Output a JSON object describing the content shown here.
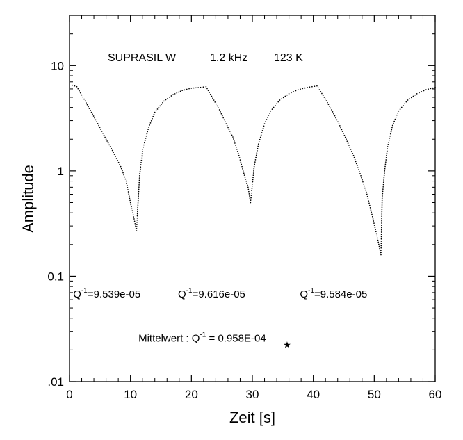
{
  "chart_data": {
    "type": "scatter",
    "title": "",
    "header": {
      "material": "SUPRASIL W",
      "frequency": "1.2 kHz",
      "temperature": "123 K"
    },
    "xlabel": "Zeit [s]",
    "ylabel": "Amplitude",
    "xlim": [
      0,
      60
    ],
    "ylim": [
      0.01,
      30
    ],
    "yscale": "log",
    "grid": false,
    "legend": "none",
    "x_ticks": [
      0,
      10,
      20,
      30,
      40,
      50,
      60
    ],
    "x_tick_labels": [
      "0",
      "10",
      "20",
      "30",
      "40",
      "50",
      "60"
    ],
    "y_ticks": [
      0.01,
      0.1,
      1,
      10
    ],
    "y_tick_labels": [
      ".01",
      "0.1",
      "1",
      "10"
    ],
    "series": [
      {
        "marker": "dot",
        "color": "#000000",
        "x": [
          0.5,
          1.2,
          2.4,
          3.6,
          4.8,
          6.0,
          7.2,
          8.4,
          9.3,
          10.0,
          10.6,
          11.0,
          11.2,
          11.5,
          12.0,
          13.0,
          14.0,
          15.5,
          17.0,
          18.5,
          20.0,
          21.5,
          22.4,
          23.5,
          24.6,
          25.7,
          26.8,
          27.8,
          28.6,
          29.3,
          29.7,
          29.9,
          30.3,
          31.0,
          32.0,
          33.0,
          34.5,
          36.0,
          37.5,
          39.0,
          40.6,
          41.8,
          43.0,
          44.2,
          45.4,
          46.6,
          47.8,
          48.8,
          49.8,
          50.6,
          51.1,
          51.3,
          51.7,
          52.2,
          53.0,
          54.0,
          55.5,
          57.0,
          58.5,
          60.0
        ],
        "y": [
          6.5,
          6.3,
          4.8,
          3.6,
          2.7,
          2.0,
          1.5,
          1.1,
          0.8,
          0.5,
          0.35,
          0.27,
          0.45,
          0.9,
          1.6,
          2.6,
          3.6,
          4.6,
          5.3,
          5.8,
          6.1,
          6.2,
          6.3,
          4.9,
          3.8,
          2.8,
          2.1,
          1.4,
          0.95,
          0.7,
          0.5,
          0.65,
          1.1,
          1.8,
          2.8,
          3.7,
          4.7,
          5.4,
          5.9,
          6.2,
          6.4,
          5.0,
          3.8,
          2.8,
          2.0,
          1.4,
          0.9,
          0.6,
          0.35,
          0.22,
          0.16,
          0.55,
          1.0,
          1.7,
          2.7,
          3.7,
          4.7,
          5.4,
          5.9,
          6.2
        ]
      }
    ],
    "annotations": [
      {
        "name": "q-1",
        "base": "Q",
        "sup": "-1",
        "rest": "=9.539e-05",
        "x": 0.6,
        "y": 0.063
      },
      {
        "name": "q-2",
        "base": "Q",
        "sup": "-1",
        "rest": "=9.616e-05",
        "x": 17.8,
        "y": 0.063
      },
      {
        "name": "q-3",
        "base": "Q",
        "sup": "-1",
        "rest": "=9.584e-05",
        "x": 37.8,
        "y": 0.063
      },
      {
        "name": "mittelwert",
        "prefix": "Mittelwert : Q",
        "sup": "-1",
        "rest": " = 0.958E-04",
        "x": 11.3,
        "y": 0.024
      }
    ],
    "marker_point": {
      "x": 35.7,
      "y": 0.0225,
      "symbol": "★"
    }
  }
}
